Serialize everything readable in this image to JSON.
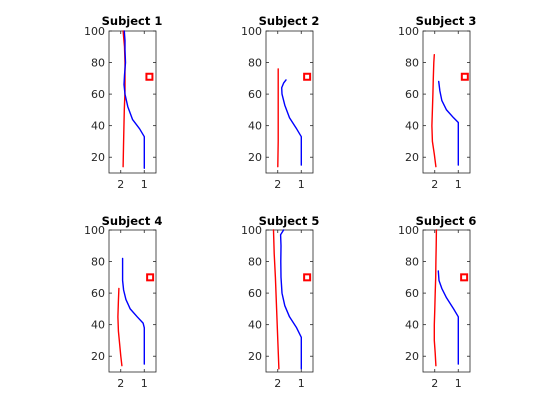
{
  "chart_data": [
    {
      "type": "line",
      "title": "Subject 1",
      "xlim": [
        0.5,
        2.5
      ],
      "x_reversed": true,
      "ylim": [
        10,
        100
      ],
      "xticks": [
        "2",
        "1"
      ],
      "yticks": [
        "20",
        "40",
        "60",
        "80",
        "100"
      ],
      "series": [
        {
          "color": "#ff0000",
          "points": [
            [
              1.9,
              14
            ],
            [
              1.88,
              30
            ],
            [
              1.85,
              50
            ],
            [
              1.82,
              62
            ],
            [
              1.82,
              70
            ],
            [
              1.82,
              80
            ],
            [
              1.84,
              90
            ],
            [
              1.9,
              100
            ]
          ]
        },
        {
          "color": "#0000ff",
          "points": [
            [
              1.0,
              13
            ],
            [
              1.0,
              33
            ],
            [
              1.2,
              38
            ],
            [
              1.5,
              44
            ],
            [
              1.7,
              52
            ],
            [
              1.82,
              60
            ],
            [
              1.86,
              66
            ],
            [
              1.84,
              72
            ],
            [
              1.8,
              80
            ],
            [
              1.82,
              88
            ],
            [
              1.82,
              94
            ],
            [
              1.85,
              100
            ]
          ]
        }
      ],
      "marker": {
        "x": 0.78,
        "y": 71,
        "color": "#ff0000",
        "shape": "square"
      }
    },
    {
      "type": "line",
      "title": "Subject 2",
      "xlim": [
        0.5,
        2.5
      ],
      "x_reversed": true,
      "ylim": [
        10,
        100
      ],
      "xticks": [
        "2",
        "1"
      ],
      "yticks": [
        "20",
        "40",
        "60",
        "80",
        "100"
      ],
      "series": [
        {
          "color": "#ff0000",
          "points": [
            [
              2.0,
              14
            ],
            [
              1.98,
              30
            ],
            [
              1.98,
              50
            ],
            [
              1.98,
              65
            ],
            [
              1.98,
              76
            ]
          ]
        },
        {
          "color": "#0000ff",
          "points": [
            [
              1.0,
              15
            ],
            [
              1.0,
              33
            ],
            [
              1.2,
              38
            ],
            [
              1.5,
              45
            ],
            [
              1.7,
              53
            ],
            [
              1.82,
              60
            ],
            [
              1.83,
              64
            ],
            [
              1.75,
              67
            ],
            [
              1.65,
              69
            ]
          ]
        }
      ],
      "marker": {
        "x": 0.75,
        "y": 71,
        "color": "#ff0000",
        "shape": "square"
      }
    },
    {
      "type": "line",
      "title": "Subject 3",
      "xlim": [
        0.5,
        2.5
      ],
      "x_reversed": true,
      "ylim": [
        10,
        100
      ],
      "xticks": [
        "2",
        "1"
      ],
      "yticks": [
        "20",
        "40",
        "60",
        "80",
        "100"
      ],
      "series": [
        {
          "color": "#ff0000",
          "points": [
            [
              1.95,
              14
            ],
            [
              2.02,
              22
            ],
            [
              2.1,
              30
            ],
            [
              2.12,
              40
            ],
            [
              2.1,
              50
            ],
            [
              2.08,
              60
            ],
            [
              2.06,
              70
            ],
            [
              2.04,
              80
            ],
            [
              2.02,
              85
            ]
          ]
        },
        {
          "color": "#0000ff",
          "points": [
            [
              1.0,
              15
            ],
            [
              1.0,
              42
            ],
            [
              1.2,
              45
            ],
            [
              1.5,
              50
            ],
            [
              1.7,
              56
            ],
            [
              1.78,
              62
            ],
            [
              1.83,
              68
            ]
          ]
        }
      ],
      "marker": {
        "x": 0.72,
        "y": 71,
        "color": "#ff0000",
        "shape": "square"
      }
    },
    {
      "type": "line",
      "title": "Subject 4",
      "xlim": [
        0.5,
        2.5
      ],
      "x_reversed": true,
      "ylim": [
        10,
        100
      ],
      "xticks": [
        "2",
        "1"
      ],
      "yticks": [
        "20",
        "40",
        "60",
        "80",
        "100"
      ],
      "series": [
        {
          "color": "#ff0000",
          "points": [
            [
              1.95,
              14
            ],
            [
              2.0,
              20
            ],
            [
              2.06,
              30
            ],
            [
              2.1,
              36
            ],
            [
              2.12,
              45
            ],
            [
              2.1,
              55
            ],
            [
              2.08,
              63
            ]
          ]
        },
        {
          "color": "#0000ff",
          "points": [
            [
              1.0,
              15
            ],
            [
              1.0,
              38
            ],
            [
              1.05,
              41
            ],
            [
              1.3,
              45
            ],
            [
              1.6,
              50
            ],
            [
              1.78,
              56
            ],
            [
              1.88,
              62
            ],
            [
              1.92,
              68
            ],
            [
              1.92,
              75
            ],
            [
              1.92,
              82
            ]
          ]
        }
      ],
      "marker": {
        "x": 0.75,
        "y": 70,
        "color": "#ff0000",
        "shape": "square"
      }
    },
    {
      "type": "line",
      "title": "Subject 5",
      "xlim": [
        0.5,
        2.5
      ],
      "x_reversed": true,
      "ylim": [
        10,
        100
      ],
      "xticks": [
        "2",
        "1"
      ],
      "yticks": [
        "20",
        "40",
        "60",
        "80",
        "100"
      ],
      "series": [
        {
          "color": "#ff0000",
          "points": [
            [
              1.95,
              12
            ],
            [
              2.0,
              30
            ],
            [
              2.05,
              50
            ],
            [
              2.1,
              70
            ],
            [
              2.15,
              85
            ],
            [
              2.18,
              100
            ]
          ]
        },
        {
          "color": "#0000ff",
          "points": [
            [
              1.0,
              12
            ],
            [
              1.0,
              32
            ],
            [
              1.2,
              38
            ],
            [
              1.5,
              45
            ],
            [
              1.7,
              52
            ],
            [
              1.82,
              60
            ],
            [
              1.86,
              70
            ],
            [
              1.87,
              80
            ],
            [
              1.86,
              90
            ],
            [
              1.88,
              97
            ],
            [
              1.75,
              100
            ]
          ]
        }
      ],
      "marker": {
        "x": 0.75,
        "y": 70,
        "color": "#ff0000",
        "shape": "square"
      }
    },
    {
      "type": "line",
      "title": "Subject 6",
      "xlim": [
        0.5,
        2.5
      ],
      "x_reversed": true,
      "ylim": [
        10,
        100
      ],
      "xticks": [
        "2",
        "1"
      ],
      "yticks": [
        "20",
        "40",
        "60",
        "80",
        "100"
      ],
      "series": [
        {
          "color": "#ff0000",
          "points": [
            [
              1.95,
              14
            ],
            [
              1.98,
              22
            ],
            [
              2.02,
              30
            ],
            [
              2.02,
              40
            ],
            [
              2.0,
              50
            ],
            [
              1.98,
              60
            ],
            [
              1.96,
              70
            ],
            [
              1.95,
              80
            ],
            [
              1.94,
              90
            ],
            [
              1.93,
              100
            ]
          ]
        },
        {
          "color": "#0000ff",
          "points": [
            [
              1.0,
              15
            ],
            [
              1.0,
              45
            ],
            [
              1.2,
              50
            ],
            [
              1.5,
              57
            ],
            [
              1.7,
              63
            ],
            [
              1.82,
              68
            ],
            [
              1.85,
              74
            ]
          ]
        }
      ],
      "marker": {
        "x": 0.75,
        "y": 70,
        "color": "#ff0000",
        "shape": "square"
      }
    }
  ]
}
